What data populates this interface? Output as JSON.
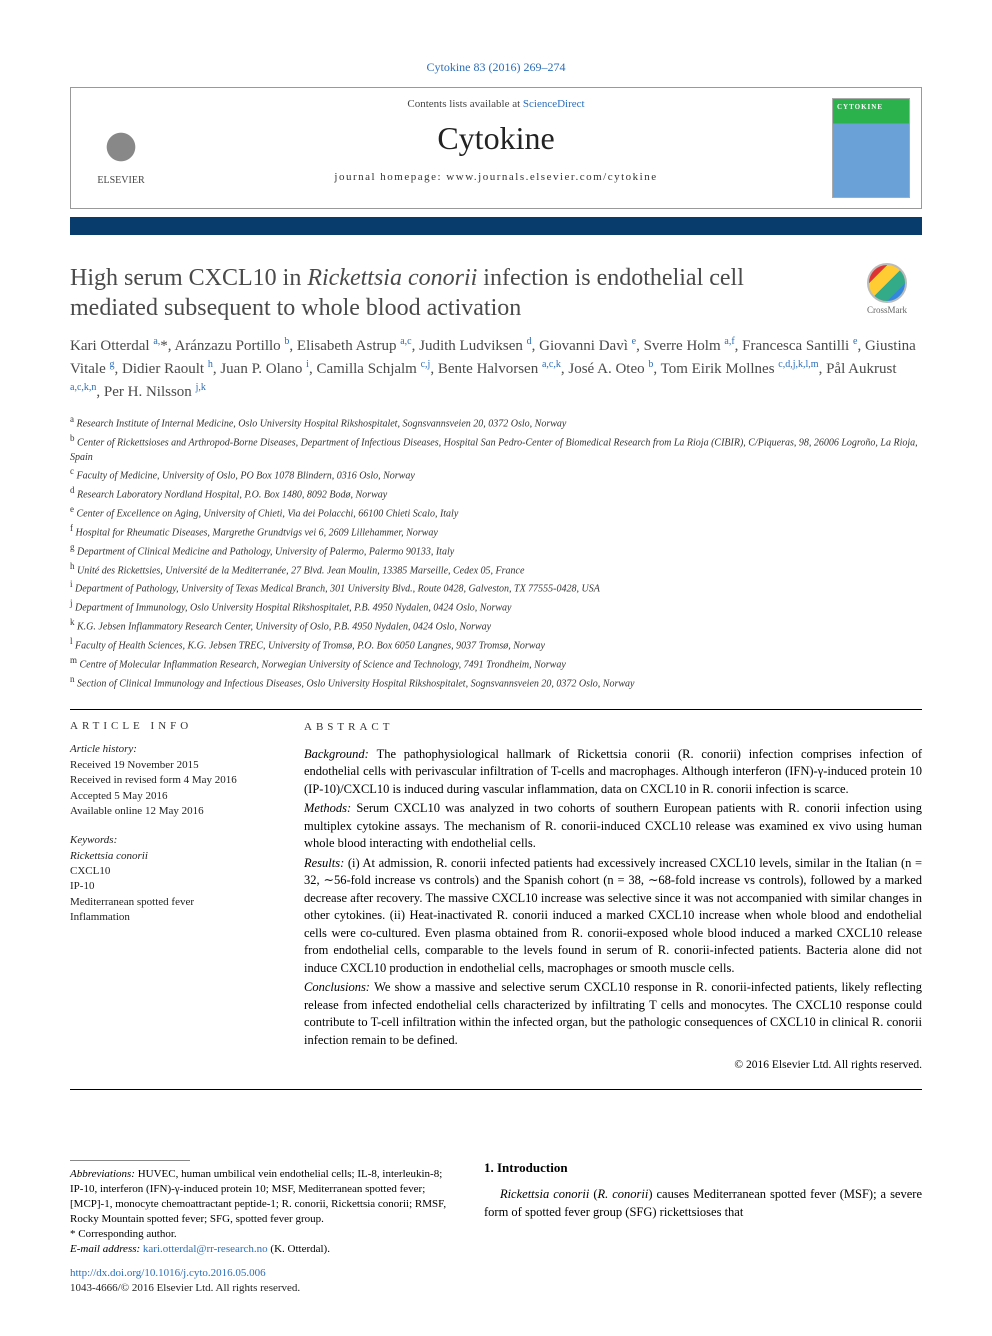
{
  "citation": "Cytokine 83 (2016) 269–274",
  "header": {
    "contents_prefix": "Contents lists available at ",
    "contents_link": "ScienceDirect",
    "journal": "Cytokine",
    "homepage": "journal homepage: www.journals.elsevier.com/cytokine",
    "publisher": "ELSEVIER",
    "cover_label": "CYTOKINE"
  },
  "crossmark": "CrossMark",
  "title_parts": {
    "p1": "High serum CXCL10 in ",
    "ital": "Rickettsia conorii",
    "p2": " infection is endothelial cell mediated subsequent to whole blood activation"
  },
  "authors_html": "Kari Otterdal <sup>a,</sup>*, Aránzazu Portillo <sup>b</sup>, Elisabeth Astrup <sup>a,c</sup>, Judith Ludviksen <sup>d</sup>, Giovanni Davì <sup>e</sup>, Sverre Holm <sup>a,f</sup>, Francesca Santilli <sup>e</sup>, Giustina Vitale <sup>g</sup>, Didier Raoult <sup>h</sup>, Juan P. Olano <sup>i</sup>, Camilla Schjalm <sup>c,j</sup>, Bente Halvorsen <sup>a,c,k</sup>, José A. Oteo <sup>b</sup>, Tom Eirik Mollnes <sup>c,d,j,k,l,m</sup>, Pål Aukrust <sup>a,c,k,n</sup>, Per H. Nilsson <sup>j,k</sup>",
  "affiliations": [
    {
      "k": "a",
      "t": "Research Institute of Internal Medicine, Oslo University Hospital Rikshospitalet, Sognsvannsveien 20, 0372 Oslo, Norway"
    },
    {
      "k": "b",
      "t": "Center of Rickettsioses and Arthropod-Borne Diseases, Department of Infectious Diseases, Hospital San Pedro-Center of Biomedical Research from La Rioja (CIBIR), C/Piqueras, 98, 26006 Logroño, La Rioja, Spain"
    },
    {
      "k": "c",
      "t": "Faculty of Medicine, University of Oslo, PO Box 1078 Blindern, 0316 Oslo, Norway"
    },
    {
      "k": "d",
      "t": "Research Laboratory Nordland Hospital, P.O. Box 1480, 8092 Bodø, Norway"
    },
    {
      "k": "e",
      "t": "Center of Excellence on Aging, University of Chieti, Via dei Polacchi, 66100 Chieti Scalo, Italy"
    },
    {
      "k": "f",
      "t": "Hospital for Rheumatic Diseases, Margrethe Grundtvigs vei 6, 2609 Lillehammer, Norway"
    },
    {
      "k": "g",
      "t": "Department of Clinical Medicine and Pathology, University of Palermo, Palermo 90133, Italy"
    },
    {
      "k": "h",
      "t": "Unité des Rickettsies, Université de la Mediterranée, 27 Blvd. Jean Moulin, 13385 Marseille, Cedex 05, France"
    },
    {
      "k": "i",
      "t": "Department of Pathology, University of Texas Medical Branch, 301 University Blvd., Route 0428, Galveston, TX 77555-0428, USA"
    },
    {
      "k": "j",
      "t": "Department of Immunology, Oslo University Hospital Rikshospitalet, P.B. 4950 Nydalen, 0424 Oslo, Norway"
    },
    {
      "k": "k",
      "t": "K.G. Jebsen Inflammatory Research Center, University of Oslo, P.B. 4950 Nydalen, 0424 Oslo, Norway"
    },
    {
      "k": "l",
      "t": "Faculty of Health Sciences, K.G. Jebsen TREC, University of Tromsø, P.O. Box 6050 Langnes, 9037 Tromsø, Norway"
    },
    {
      "k": "m",
      "t": "Centre of Molecular Inflammation Research, Norwegian University of Science and Technology, 7491 Trondheim, Norway"
    },
    {
      "k": "n",
      "t": "Section of Clinical Immunology and Infectious Diseases, Oslo University Hospital Rikshospitalet, Sognsvannsveien 20, 0372 Oslo, Norway"
    }
  ],
  "article_info": {
    "label": "article info",
    "history_title": "Article history:",
    "history": [
      "Received 19 November 2015",
      "Received in revised form 4 May 2016",
      "Accepted 5 May 2016",
      "Available online 12 May 2016"
    ],
    "keywords_title": "Keywords:",
    "keywords": [
      "Rickettsia conorii",
      "CXCL10",
      "IP-10",
      "Mediterranean spotted fever",
      "Inflammation"
    ]
  },
  "abstract": {
    "label": "abstract",
    "background": "The pathophysiological hallmark of Rickettsia conorii (R. conorii) infection comprises infection of endothelial cells with perivascular infiltration of T-cells and macrophages. Although interferon (IFN)-γ-induced protein 10 (IP-10)/CXCL10 is induced during vascular inflammation, data on CXCL10 in R. conorii infection is scarce.",
    "methods": "Serum CXCL10 was analyzed in two cohorts of southern European patients with R. conorii infection using multiplex cytokine assays. The mechanism of R. conorii-induced CXCL10 release was examined ex vivo using human whole blood interacting with endothelial cells.",
    "results": "(i) At admission, R. conorii infected patients had excessively increased CXCL10 levels, similar in the Italian (n = 32, ∼56-fold increase vs controls) and the Spanish cohort (n = 38, ∼68-fold increase vs controls), followed by a marked decrease after recovery. The massive CXCL10 increase was selective since it was not accompanied with similar changes in other cytokines. (ii) Heat-inactivated R. conorii induced a marked CXCL10 increase when whole blood and endothelial cells were co-cultured. Even plasma obtained from R. conorii-exposed whole blood induced a marked CXCL10 release from endothelial cells, comparable to the levels found in serum of R. conorii-infected patients. Bacteria alone did not induce CXCL10 production in endothelial cells, macrophages or smooth muscle cells.",
    "conclusions": "We show a massive and selective serum CXCL10 response in R. conorii-infected patients, likely reflecting release from infected endothelial cells characterized by infiltrating T cells and monocytes. The CXCL10 response could contribute to T-cell infiltration within the infected organ, but the pathologic consequences of CXCL10 in clinical R. conorii infection remain to be defined.",
    "copyright": "© 2016 Elsevier Ltd. All rights reserved."
  },
  "footer": {
    "abbrev_label": "Abbreviations:",
    "abbrev_text": " HUVEC, human umbilical vein endothelial cells; IL-8, interleukin-8; IP-10, interferon (IFN)-γ-induced protein 10; MSF, Mediterranean spotted fever; [MCP]-1, monocyte chemoattractant peptide-1; R. conorii, Rickettsia conorii; RMSF, Rocky Mountain spotted fever; SFG, spotted fever group.",
    "corr": "* Corresponding author.",
    "email_label": "E-mail address: ",
    "email": "kari.otterdal@rr-research.no",
    "email_suffix": " (K. Otterdal).",
    "doi": "http://dx.doi.org/10.1016/j.cyto.2016.05.006",
    "issn": "1043-4666/© 2016 Elsevier Ltd. All rights reserved."
  },
  "intro": {
    "heading": "1. Introduction",
    "body_p1": "Rickettsia conorii (R. conorii) causes Mediterranean spotted fever (MSF); a severe form of spotted fever group (SFG) rickettsioses that"
  },
  "colors": {
    "link": "#2a6ebb",
    "bar": "#083c6c",
    "title": "#4a4a4a",
    "cover_top": "#2bb24c",
    "cover_bottom": "#6aa2d8"
  }
}
